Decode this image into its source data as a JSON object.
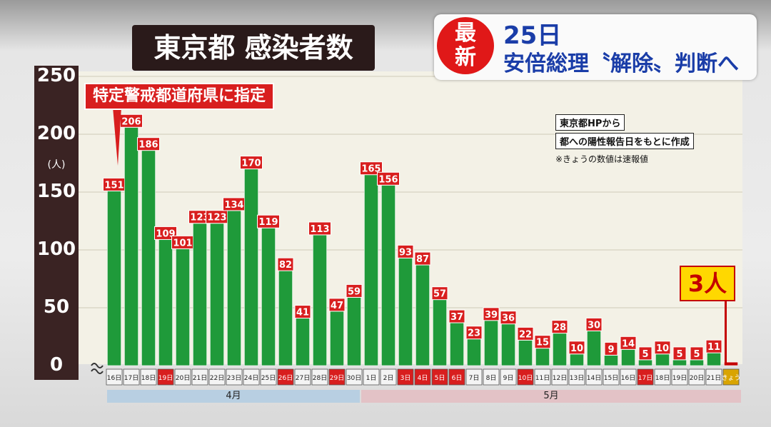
{
  "header": {
    "title": "東京都 感染者数",
    "designation_label": "特定警戒都道府県に指定"
  },
  "news_banner": {
    "badge_line1": "最",
    "badge_line2": "新",
    "line1": "25日 ",
    "line2": "安倍総理〝解除〟判断へ"
  },
  "source": {
    "line1": "東京都HPから",
    "line2": "都への陽性報告日をもとに作成",
    "note": "※きょうの数値は速報値"
  },
  "callout": {
    "today_label": "3人"
  },
  "colors": {
    "bar": "#1f9a3a",
    "label_bg": "#d81e1e",
    "weekend_tick_bg": "#d81e1e",
    "holiday_tick_bg": "#3c5dc0",
    "today_tick_bg": "#d9a400"
  },
  "chart_data": {
    "type": "bar",
    "title": "東京都 感染者数",
    "ylabel": "(人)",
    "ylim": [
      0,
      250
    ],
    "yticks": [
      0,
      50,
      100,
      150,
      200,
      250
    ],
    "months": [
      {
        "label": "4月",
        "count": 15
      },
      {
        "label": "5月",
        "count": 22
      }
    ],
    "categories": [
      "16日",
      "17日",
      "18日",
      "19日",
      "20日",
      "21日",
      "22日",
      "23日",
      "24日",
      "25日",
      "26日",
      "27日",
      "28日",
      "29日",
      "30日",
      "1日",
      "2日",
      "3日",
      "4日",
      "5日",
      "6日",
      "7日",
      "8日",
      "9日",
      "10日",
      "11日",
      "12日",
      "13日",
      "14日",
      "15日",
      "16日",
      "17日",
      "18日",
      "19日",
      "20日",
      "21日",
      "きょう"
    ],
    "values": [
      151,
      206,
      186,
      109,
      101,
      123,
      123,
      134,
      170,
      119,
      82,
      41,
      113,
      47,
      59,
      165,
      156,
      93,
      87,
      57,
      37,
      23,
      39,
      36,
      22,
      15,
      28,
      10,
      30,
      9,
      14,
      5,
      10,
      5,
      5,
      11,
      3
    ],
    "day_types": [
      "w",
      "w",
      "w",
      "h",
      "w",
      "w",
      "w",
      "w",
      "w",
      "w",
      "h",
      "w",
      "w",
      "h",
      "w",
      "w",
      "w",
      "h",
      "h",
      "h",
      "h",
      "w",
      "w",
      "w",
      "h",
      "w",
      "w",
      "w",
      "w",
      "w",
      "w",
      "h",
      "w",
      "w",
      "w",
      "w",
      "t"
    ]
  }
}
